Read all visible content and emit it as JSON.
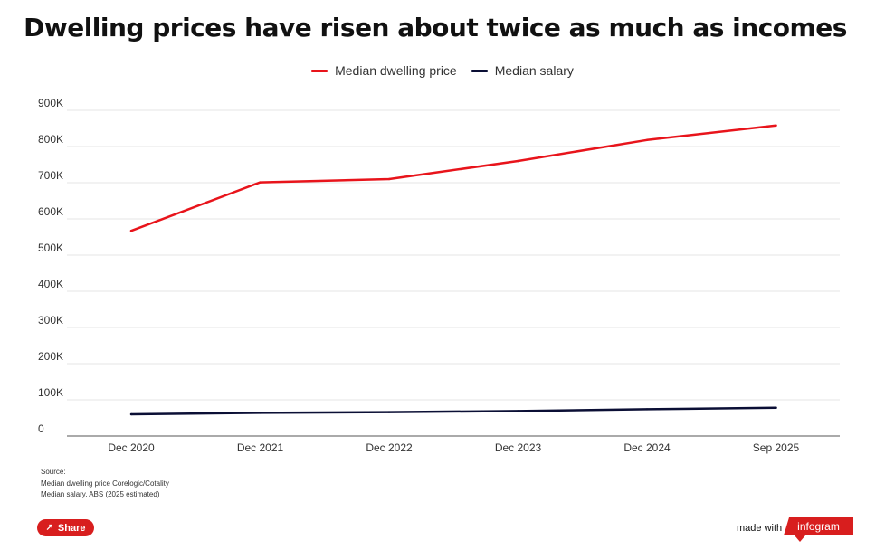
{
  "chart_data": {
    "type": "line",
    "title": "Dwelling prices have risen about twice as much as incomes",
    "categories": [
      "Dec 2020",
      "Dec 2021",
      "Dec 2022",
      "Dec 2023",
      "Dec 2024",
      "Sep 2025"
    ],
    "series": [
      {
        "name": "Median dwelling price",
        "color": "#e8141b",
        "values": [
          567000,
          701000,
          710000,
          760000,
          818000,
          858000
        ]
      },
      {
        "name": "Median salary",
        "color": "#0b0f35",
        "values": [
          60000,
          64000,
          66000,
          69000,
          74000,
          78000
        ]
      }
    ],
    "y_ticks": [
      0,
      100000,
      200000,
      300000,
      400000,
      500000,
      600000,
      700000,
      800000,
      900000
    ],
    "y_tick_labels": [
      "0",
      "100K",
      "200K",
      "300K",
      "400K",
      "500K",
      "600K",
      "700K",
      "800K",
      "900K"
    ],
    "ylim": [
      0,
      900000
    ],
    "xlabel": "",
    "ylabel": "",
    "grid": true,
    "legend_position": "top-center"
  },
  "source": {
    "heading": "Source:",
    "line1": "Median dwelling price  Corelogic/Cotality",
    "line2": "Median salary, ABS (2025 estimated)"
  },
  "footer": {
    "share_label": "Share",
    "made_with": "made with",
    "brand": "infogram"
  },
  "icons": {
    "share": "share-icon"
  }
}
